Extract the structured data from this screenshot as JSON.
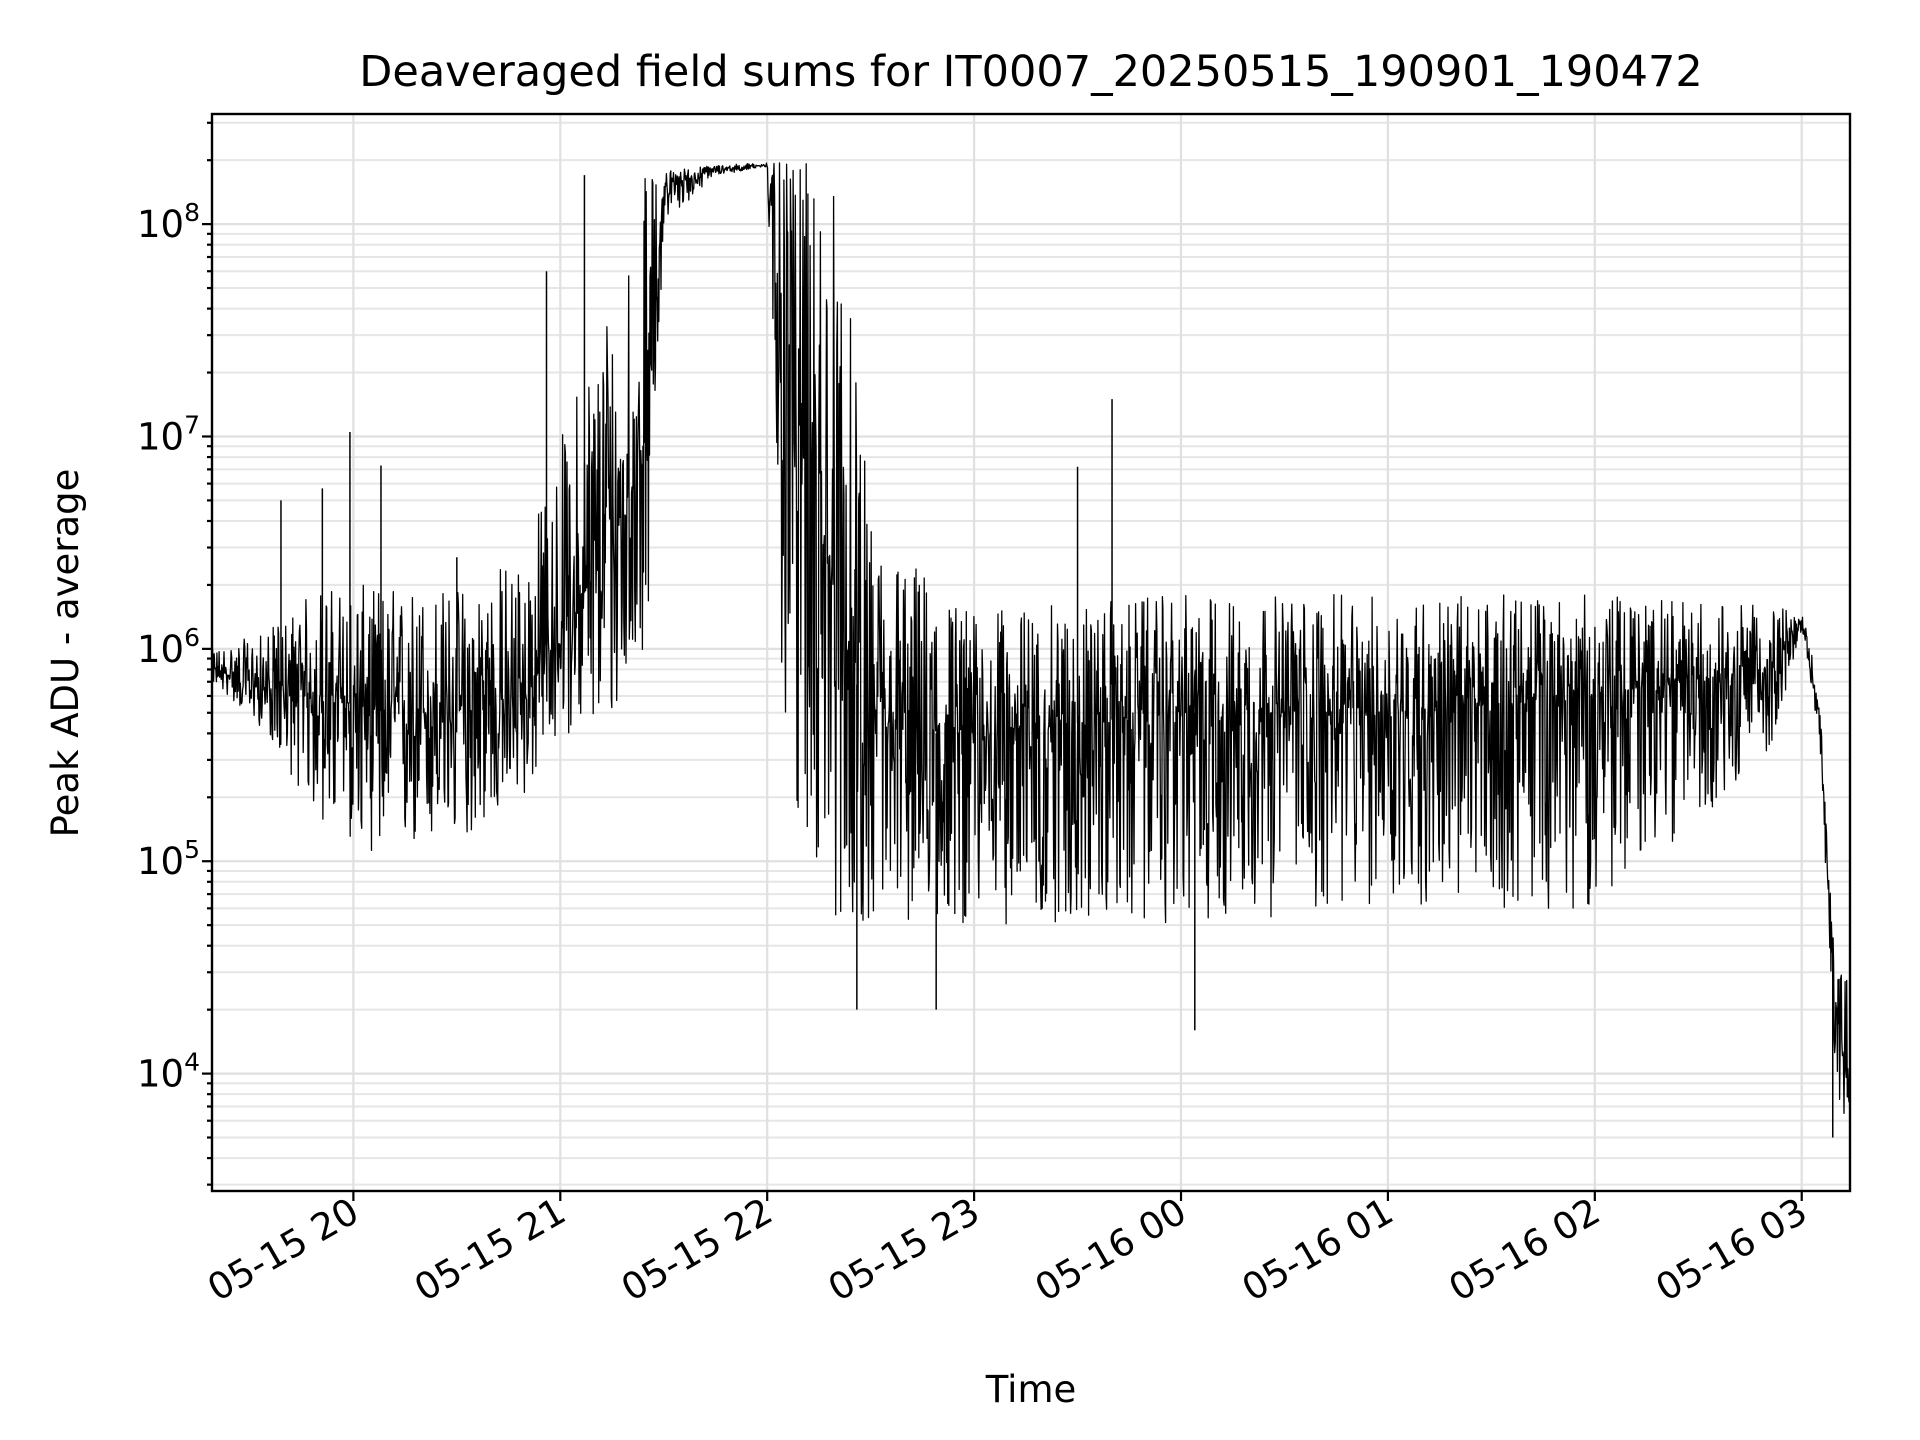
{
  "chart_data": {
    "type": "line",
    "title": "Deaveraged field sums for IT0007_20250515_190901_190472",
    "xlabel": "Time",
    "ylabel": "Peak ADU - average",
    "yscale": "log",
    "ylim": [
      2800,
      330000000
    ],
    "xlim": [
      "05-15 19:19",
      "05-16 03:14"
    ],
    "grid": true,
    "x_tick_labels": [
      "05-15 20",
      "05-15 21",
      "05-15 22",
      "05-15 23",
      "05-16 00",
      "05-16 01",
      "05-16 02",
      "05-16 03"
    ],
    "y_tick_labels": [
      {
        "base": "10",
        "exp": "4",
        "value": 10000
      },
      {
        "base": "10",
        "exp": "5",
        "value": 100000
      },
      {
        "base": "10",
        "exp": "6",
        "value": 1000000
      },
      {
        "base": "10",
        "exp": "7",
        "value": 10000000
      },
      {
        "base": "10",
        "exp": "8",
        "value": 100000000
      }
    ],
    "series_profile": {
      "x": [
        "05-15 19:19",
        "05-15 19:35",
        "05-15 19:50",
        "05-15 20:10",
        "05-15 20:30",
        "05-15 20:50",
        "05-15 21:00",
        "05-15 21:15",
        "05-15 21:25",
        "05-15 21:30",
        "05-15 21:45",
        "05-15 22:00",
        "05-15 22:05",
        "05-15 22:20",
        "05-15 22:30",
        "05-15 23:00",
        "05-16 00:00",
        "05-16 01:00",
        "05-16 02:00",
        "05-16 02:50",
        "05-16 03:00",
        "05-16 03:05",
        "05-16 03:10",
        "05-16 03:14"
      ],
      "center": [
        800000,
        650000,
        600000,
        500000,
        500000,
        600000,
        1200000,
        3000000,
        10000000,
        150000000,
        180000000,
        190000000,
        30000000,
        1500000,
        400000,
        400000,
        500000,
        500000,
        600000,
        800000,
        1300000,
        500000,
        20000,
        8000
      ],
      "low": [
        700000,
        400000,
        150000,
        100000,
        120000,
        200000,
        400000,
        400000,
        1000000,
        100000000,
        170000000,
        185000000,
        200000,
        50000,
        50000,
        50000,
        50000,
        60000,
        60000,
        300000,
        1200000,
        400000,
        8000,
        5000
      ],
      "high": [
        1000000,
        1200000,
        2000000,
        2000000,
        2000000,
        3000000,
        10000000,
        60000000,
        180000000,
        180000000,
        190000000,
        195000000,
        195000000,
        190000000,
        4000000,
        1500000,
        1800000,
        1800000,
        1800000,
        1600000,
        1500000,
        700000,
        30000,
        30000
      ]
    },
    "notable_spikes": [
      {
        "x": "05-15 19:39",
        "y": 5000000
      },
      {
        "x": "05-15 19:51",
        "y": 5700000
      },
      {
        "x": "05-15 19:59",
        "y": 10500000
      },
      {
        "x": "05-15 20:08",
        "y": 7300000
      },
      {
        "x": "05-15 20:30",
        "y": 2700000
      },
      {
        "x": "05-15 20:56",
        "y": 60000000
      },
      {
        "x": "05-15 21:07",
        "y": 170000000
      },
      {
        "x": "05-15 22:26",
        "y": 20000
      },
      {
        "x": "05-15 22:49",
        "y": 20000
      },
      {
        "x": "05-15 23:30",
        "y": 7200000
      },
      {
        "x": "05-15 23:40",
        "y": 15000000
      },
      {
        "x": "05-16 00:04",
        "y": 16000
      },
      {
        "x": "05-16 03:09",
        "y": 5000
      }
    ]
  }
}
